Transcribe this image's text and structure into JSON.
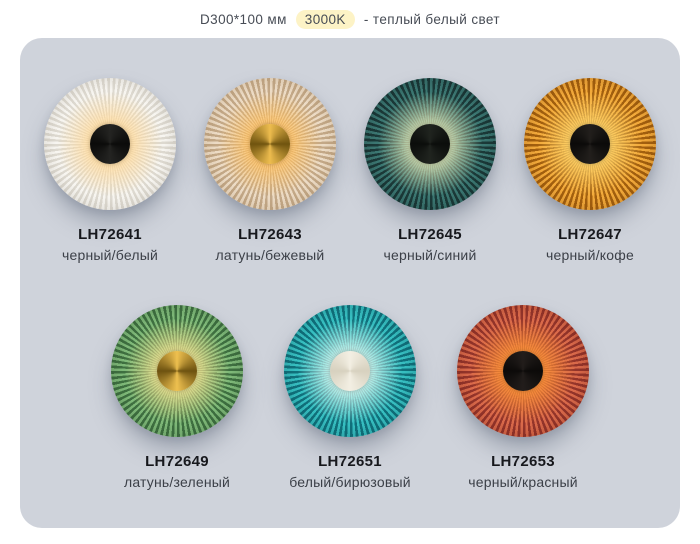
{
  "header": {
    "dimensions": "D300*100 мм",
    "temperature": "3000K",
    "temperature_description": "- теплый белый свет"
  },
  "theme": {
    "page_bg": "#ffffff",
    "panel_bg": "#cfd3db",
    "badge_bg": "#fdf3c6",
    "header_text": "#474c55",
    "text_primary": "#15161a",
    "text_secondary": "#3c4048"
  },
  "products": [
    {
      "model": "LH72641",
      "colors_label": "черный/белый",
      "palette": {
        "pleat_light": "#f7f5f0",
        "pleat_dark": "#ddd9d0",
        "glow_core": "rgba(255,216,150,0.95)",
        "glow_fade": "rgba(255,216,150,0)",
        "cap_light": "#242422",
        "cap_dark": "#0b0b0a",
        "rim": "rgba(125,120,110,0.38)"
      }
    },
    {
      "model": "LH72643",
      "colors_label": "латунь/бежевый",
      "palette": {
        "pleat_light": "#ecdbc5",
        "pleat_dark": "#c3a887",
        "glow_core": "rgba(255,190,90,0.95)",
        "glow_fade": "rgba(255,190,90,0)",
        "cap_light": "#edbc4e",
        "cap_dark": "#70540f",
        "rim": "rgba(125,95,55,0.38)"
      }
    },
    {
      "model": "LH72645",
      "colors_label": "черный/синий",
      "palette": {
        "pleat_light": "#3b7772",
        "pleat_dark": "#1b3938",
        "glow_core": "rgba(235,240,190,0.95)",
        "glow_fade": "rgba(235,240,190,0)",
        "cap_light": "#20241f",
        "cap_dark": "#0b0d0b",
        "rim": "rgba(8,22,22,0.5)"
      }
    },
    {
      "model": "LH72647",
      "colors_label": "черный/кофе",
      "palette": {
        "pleat_light": "#f2a93a",
        "pleat_dark": "#a25f0e",
        "glow_core": "rgba(255,215,110,1)",
        "glow_fade": "rgba(255,215,110,0)",
        "cap_light": "#221f1c",
        "cap_dark": "#0b0a09",
        "rim": "rgba(90,45,5,0.42)"
      }
    },
    {
      "model": "LH72649",
      "colors_label": "латунь/зеленый",
      "palette": {
        "pleat_light": "#7eb878",
        "pleat_dark": "#3e6f40",
        "glow_core": "rgba(255,232,150,0.95)",
        "glow_fade": "rgba(255,232,150,0)",
        "cap_light": "#eec04f",
        "cap_dark": "#6d5210",
        "rim": "rgba(25,55,28,0.42)"
      }
    },
    {
      "model": "LH72651",
      "colors_label": "белый/бирюзовый",
      "palette": {
        "pleat_light": "#36bec0",
        "pleat_dark": "#10707b",
        "glow_core": "rgba(230,255,246,0.95)",
        "glow_fade": "rgba(230,255,246,0)",
        "cap_light": "#f3efe3",
        "cap_dark": "#d7d1bf",
        "rim": "rgba(6,60,66,0.45)"
      }
    },
    {
      "model": "LH72653",
      "colors_label": "черный/красный",
      "palette": {
        "pleat_light": "#d9694a",
        "pleat_dark": "#93342a",
        "glow_core": "rgba(255,150,55,1)",
        "glow_fade": "rgba(255,150,55,0)",
        "cap_light": "#221d1b",
        "cap_dark": "#0c0a09",
        "rim": "rgba(80,18,8,0.45)"
      }
    }
  ]
}
